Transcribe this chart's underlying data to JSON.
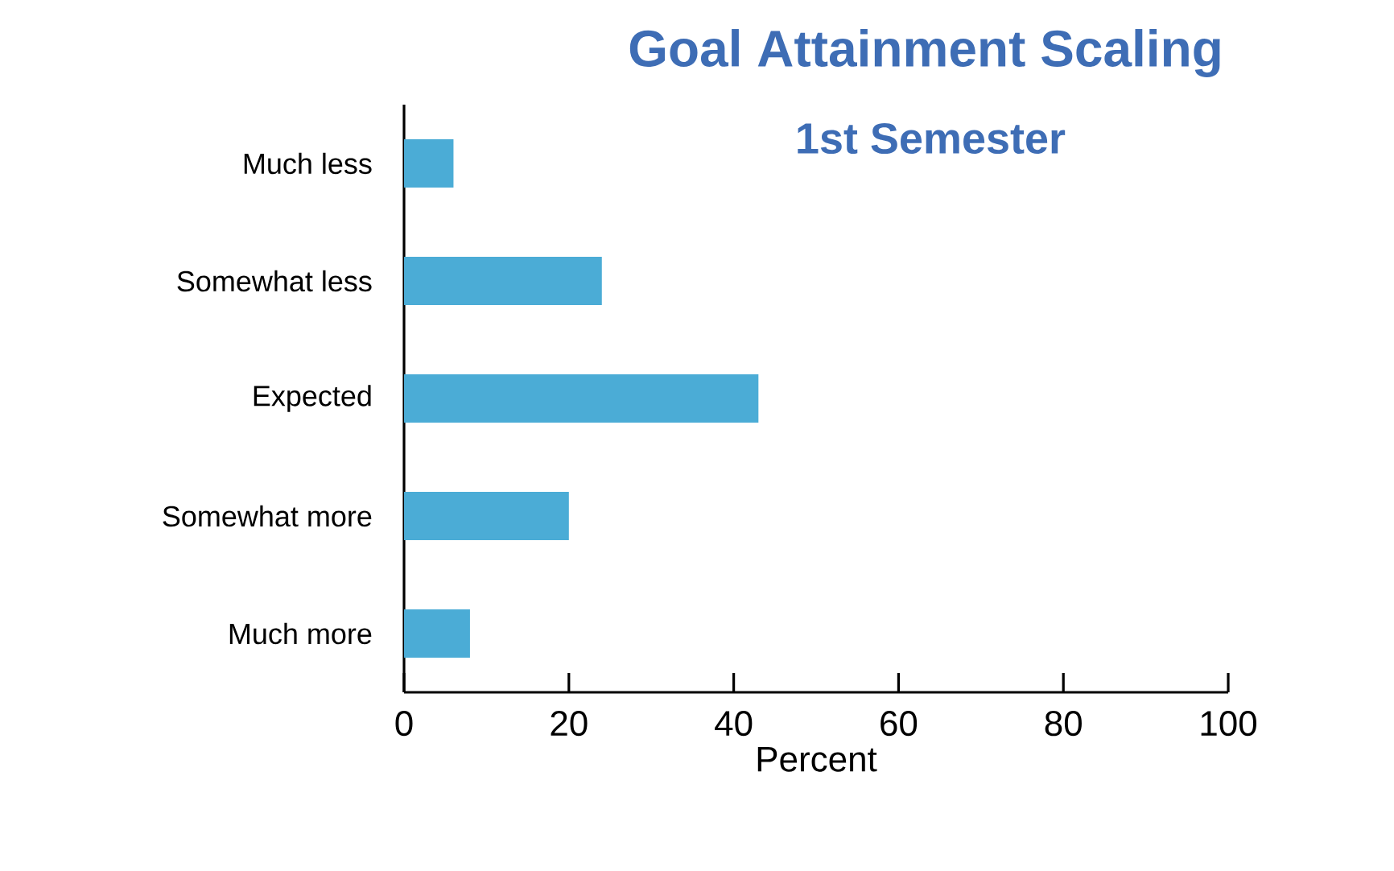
{
  "chart_data": {
    "type": "bar",
    "orientation": "horizontal",
    "title": "Goal Attainment Scaling",
    "subtitle": "1st Semester",
    "xlabel": "Percent",
    "categories": [
      "Much less",
      "Somewhat less",
      "Expected",
      "Somewhat more",
      "Much more"
    ],
    "values": [
      6,
      24,
      43,
      20,
      8
    ],
    "color": "#4bacd6",
    "xlim": [
      0,
      100
    ],
    "xticks": [
      0,
      20,
      40,
      60,
      80,
      100
    ]
  }
}
